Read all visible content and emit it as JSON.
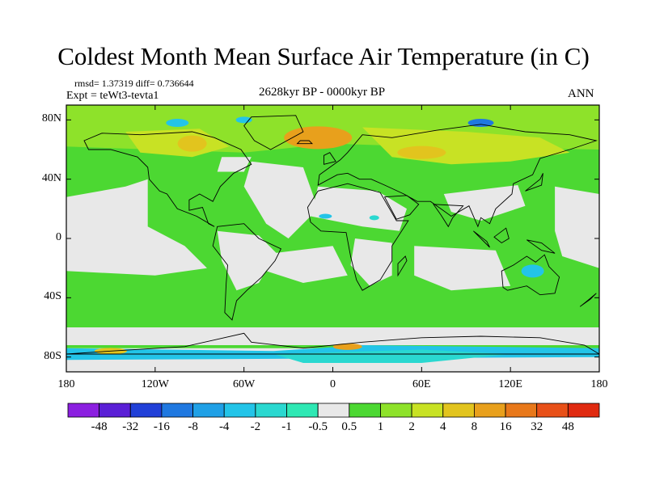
{
  "title": "Coldest Month Mean Surface Air Temperature (in C)",
  "stats": "rmsd= 1.37319 diff= 0.736644",
  "experiment": "Expt = teWt3-tevta1",
  "period": "2628kyr BP - 0000kyr BP",
  "season": "ANN",
  "map": {
    "projection": "cylindrical-equidistant",
    "lon_range": [
      -180,
      180
    ],
    "lat_range": [
      -90,
      90
    ],
    "y_ticks": [
      {
        "lat": 80,
        "label": "80N"
      },
      {
        "lat": 40,
        "label": "40N"
      },
      {
        "lat": 0,
        "label": "0"
      },
      {
        "lat": -40,
        "label": "40S"
      },
      {
        "lat": -80,
        "label": "80S"
      }
    ],
    "x_ticks": [
      {
        "lon": -180,
        "label": "180"
      },
      {
        "lon": -120,
        "label": "120W"
      },
      {
        "lon": -60,
        "label": "60W"
      },
      {
        "lon": 0,
        "label": "0"
      },
      {
        "lon": 60,
        "label": "60E"
      },
      {
        "lon": 120,
        "label": "120E"
      },
      {
        "lon": 180,
        "label": "180"
      }
    ]
  },
  "colorbar": {
    "colors": [
      "#8b1fe0",
      "#5a1fd6",
      "#2140d8",
      "#1f78e0",
      "#1fa0e6",
      "#23c4e8",
      "#2ad8d0",
      "#2ee8b4",
      "#e8e8e8",
      "#4cd832",
      "#8ee22a",
      "#c8e224",
      "#e2c41e",
      "#e8a01c",
      "#e8781a",
      "#e85018",
      "#e02a10"
    ],
    "labels": [
      "-48",
      "-32",
      "-16",
      "-8",
      "-4",
      "-2",
      "-1",
      "-0.5",
      "0.5",
      "1",
      "2",
      "4",
      "8",
      "16",
      "32",
      "48"
    ]
  },
  "palette": {
    "neutral": "#e8e8e8",
    "light_green": "#4cd832",
    "yellow_green": "#8ee22a",
    "olive": "#c8e224",
    "gold": "#e2c41e",
    "orange": "#e8a01c",
    "cyan": "#23c4e8",
    "blue": "#1f78e0",
    "teal": "#2ad8d0",
    "coast": "#000000"
  }
}
